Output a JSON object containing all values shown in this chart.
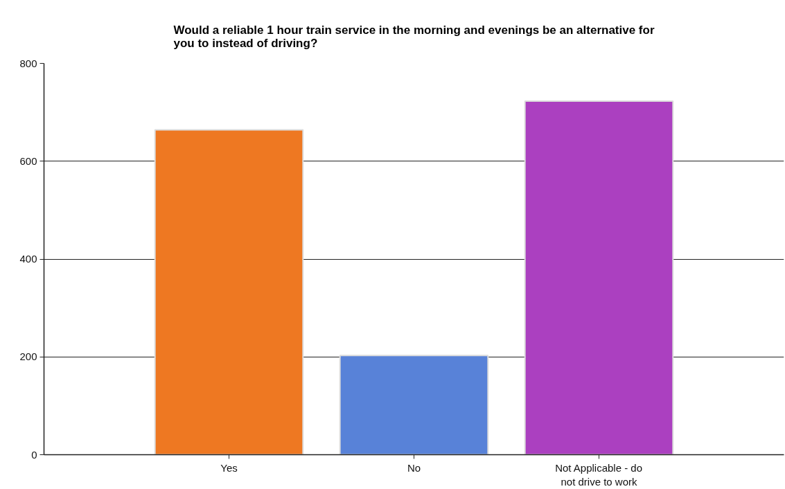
{
  "chart_data": {
    "type": "bar",
    "title": "Would a reliable 1 hour train service in the morning and evenings be an alternative for you to instead of driving?",
    "categories": [
      "Yes",
      "No",
      "Not Applicable - do not drive to work"
    ],
    "values": [
      664,
      203,
      723
    ],
    "colors": [
      "#ee7822",
      "#5882d8",
      "#ab40c0"
    ],
    "ylim": [
      0,
      800
    ],
    "yticks": [
      0,
      200,
      400,
      600,
      800
    ],
    "grid": "y"
  }
}
